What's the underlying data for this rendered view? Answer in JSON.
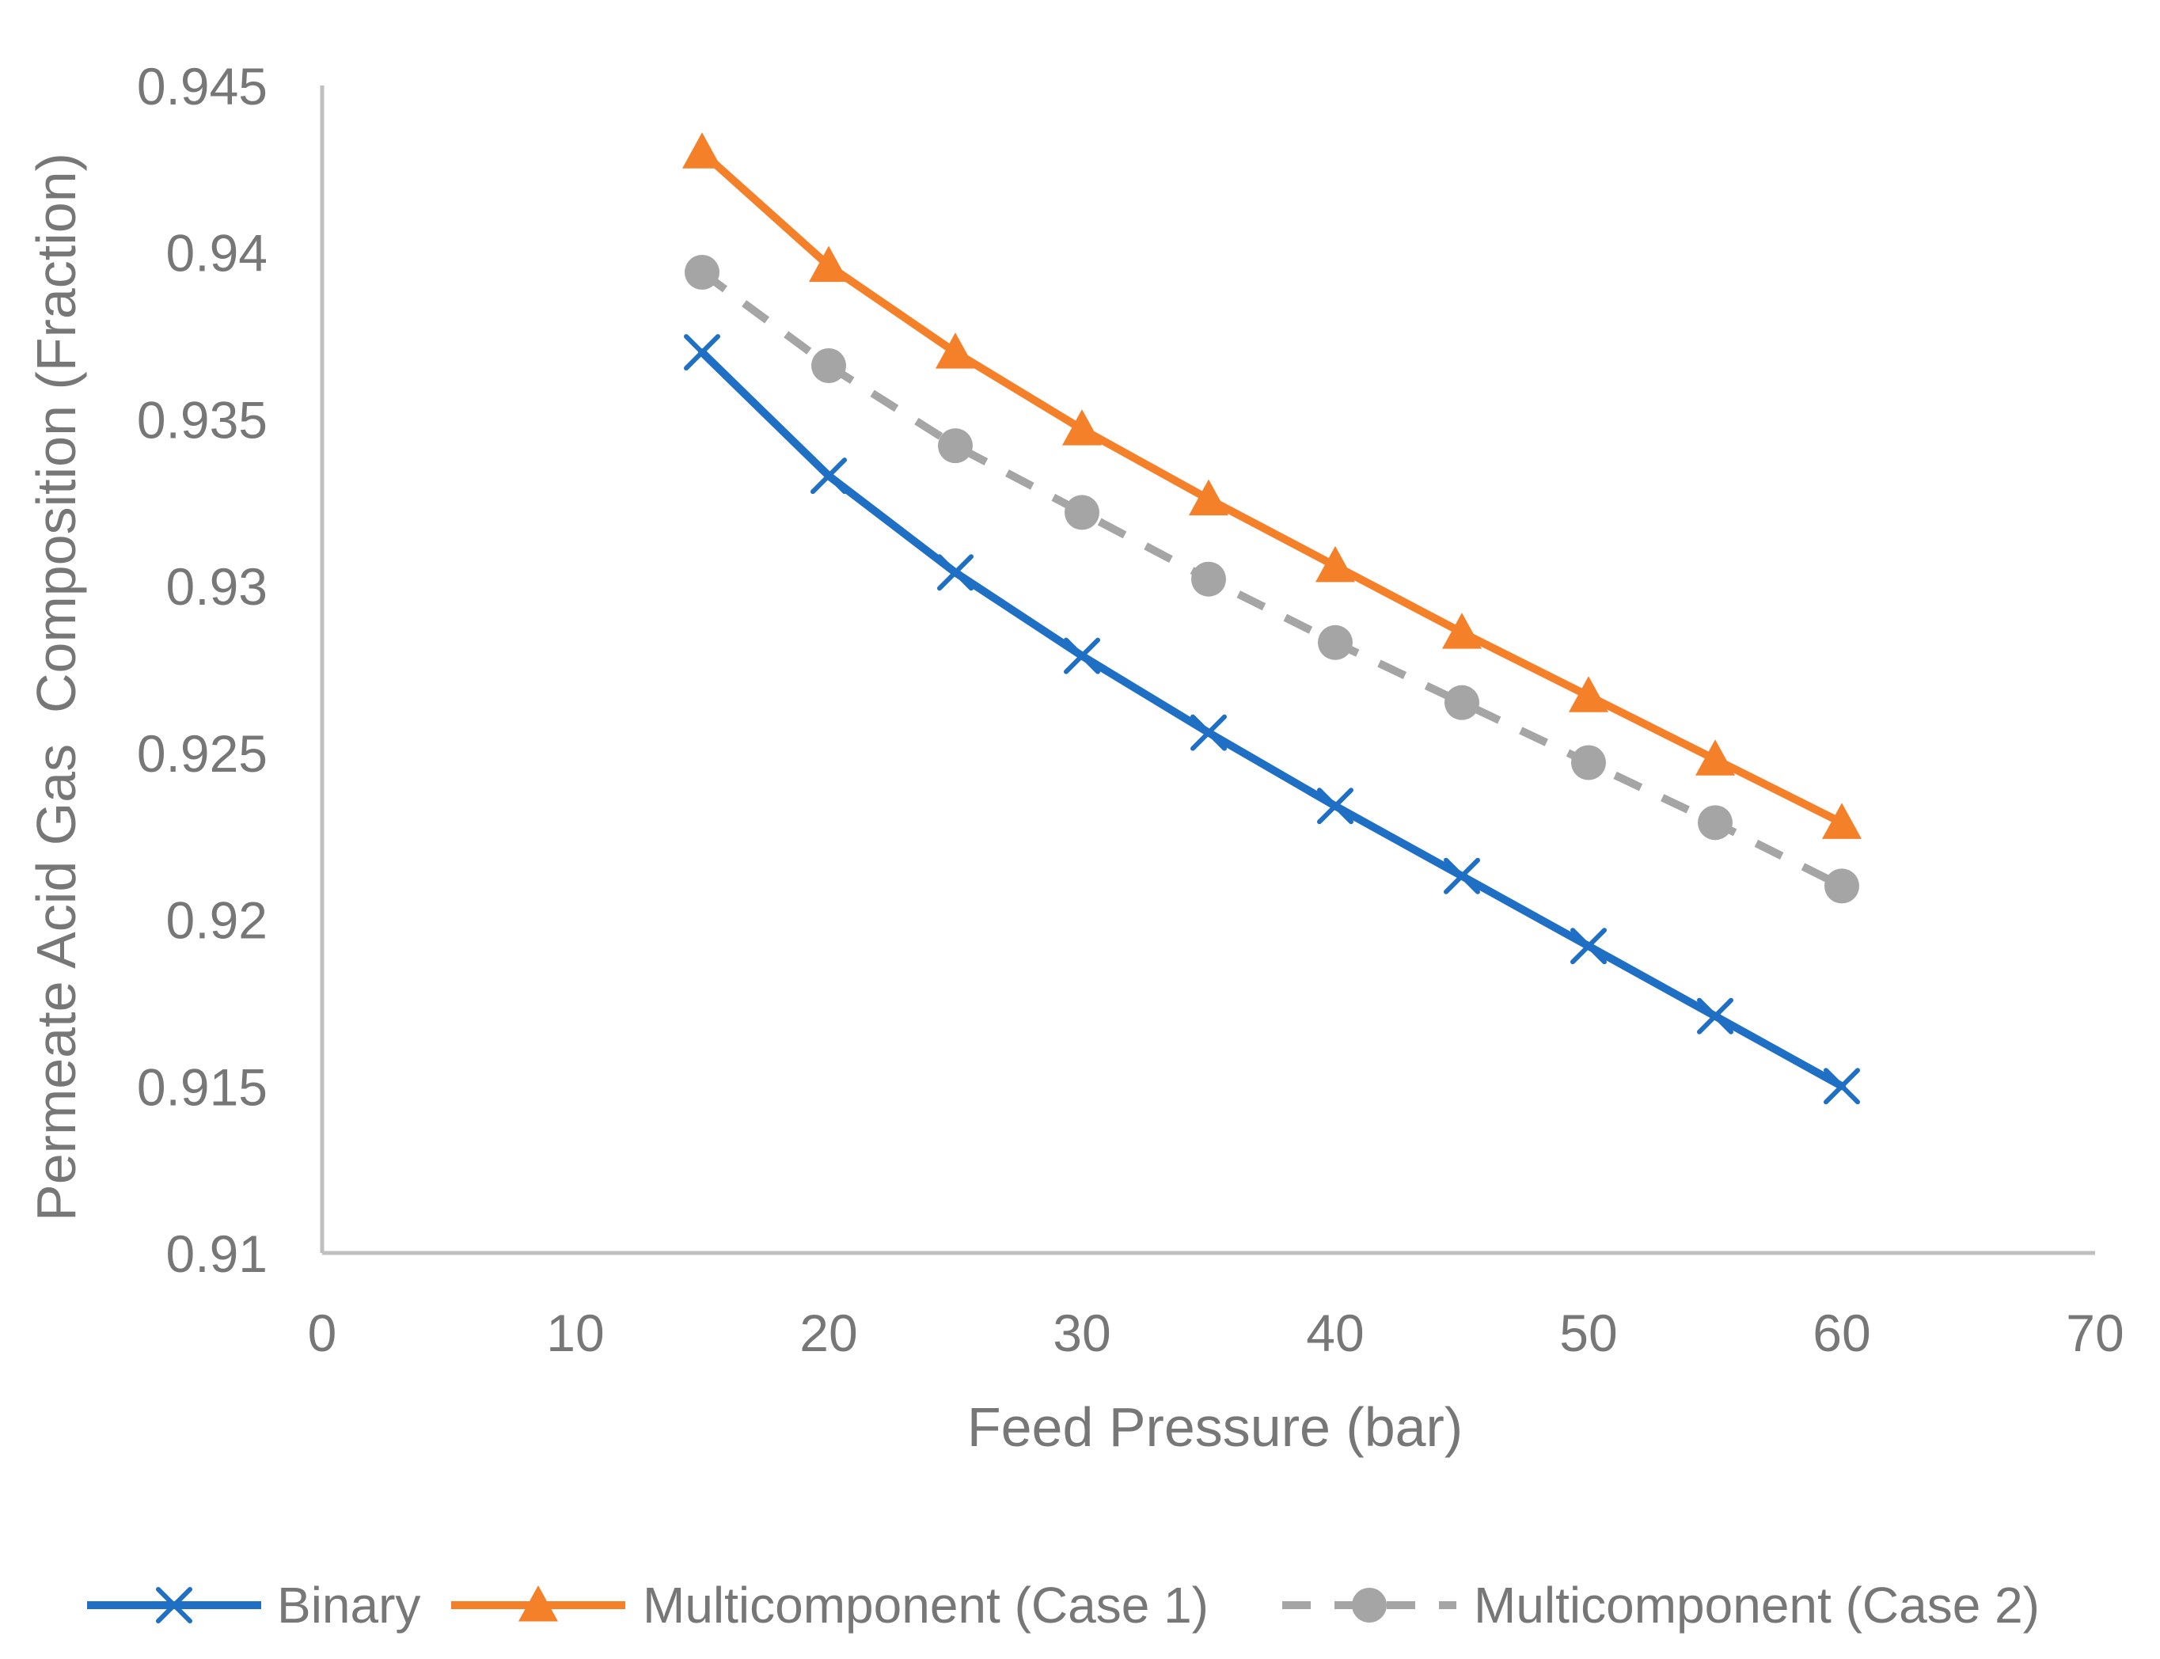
{
  "chart_data": {
    "type": "line",
    "title": "",
    "xlabel": "Feed Pressure (bar)",
    "ylabel": "Permeate Acid Gas  Composition (Fraction)",
    "xlim": [
      0,
      70
    ],
    "ylim": [
      0.91,
      0.945
    ],
    "x_ticks": [
      "0",
      "10",
      "20",
      "30",
      "40",
      "50",
      "60",
      "70"
    ],
    "y_ticks": [
      "0.91",
      "0.915",
      "0.92",
      "0.925",
      "0.93",
      "0.935",
      "0.94",
      "0.945"
    ],
    "grid": false,
    "legend_position": "bottom",
    "x": [
      15,
      20,
      25,
      30,
      35,
      40,
      45,
      50,
      55,
      60
    ],
    "series": [
      {
        "name": "Binary",
        "color": "#1f6fc5",
        "marker": "x",
        "dash": "solid",
        "values": [
          0.937,
          0.9333,
          0.9304,
          0.9279,
          0.9256,
          0.9234,
          0.9213,
          0.9192,
          0.9171,
          0.915
        ]
      },
      {
        "name": "Multicomponent (Case 1)",
        "color": "#f5802a",
        "marker": "triangle",
        "dash": "solid",
        "values": [
          0.943,
          0.9396,
          0.937,
          0.9347,
          0.9326,
          0.9306,
          0.9286,
          0.9267,
          0.9248,
          0.9229
        ]
      },
      {
        "name": "Multicomponent (Case 2)",
        "color": "#a5a5a5",
        "marker": "circle",
        "dash": "dashed",
        "values": [
          0.9394,
          0.9366,
          0.9342,
          0.9322,
          0.9302,
          0.9283,
          0.9265,
          0.9247,
          0.9229,
          0.921
        ]
      }
    ]
  }
}
